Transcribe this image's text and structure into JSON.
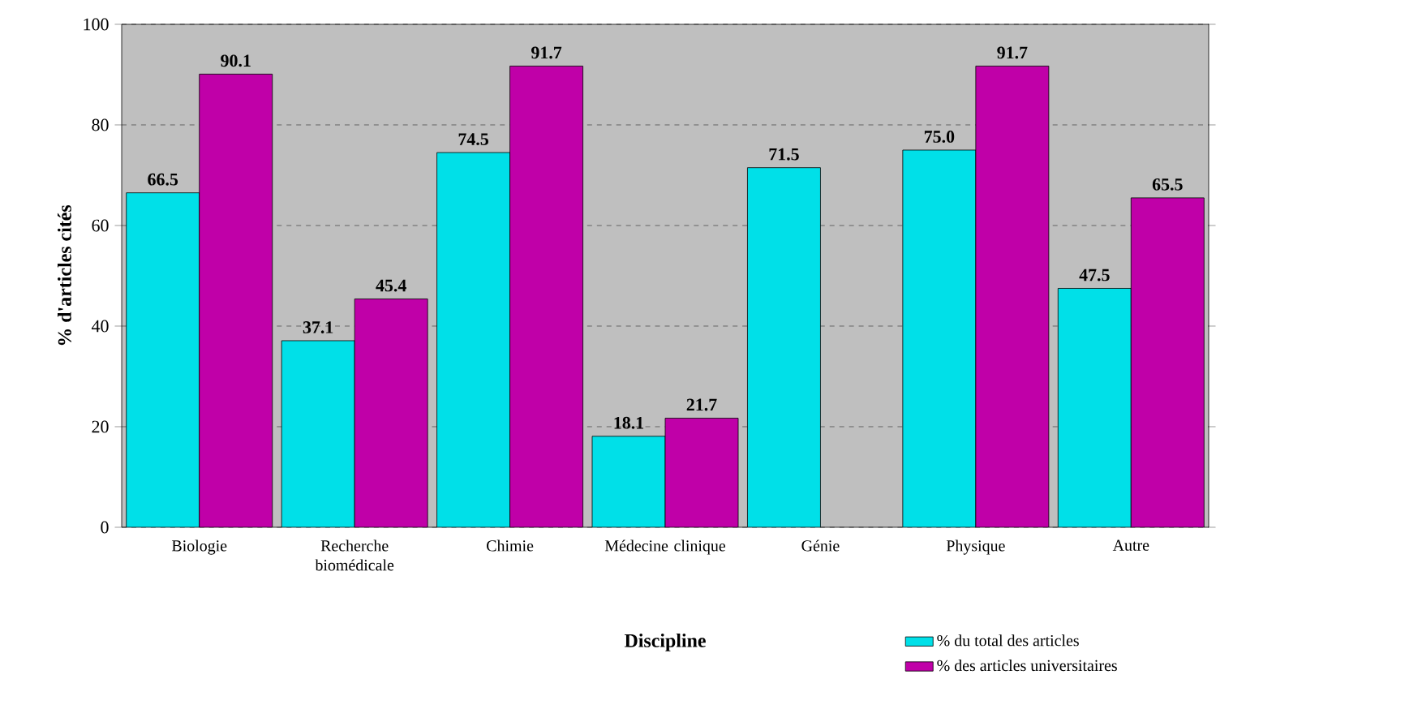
{
  "chart_data": {
    "type": "bar",
    "xlabel": "Discipline",
    "ylabel": "% d'articles cités",
    "categories": [
      "Biologie",
      "Recherche biomédicale",
      "Chimie",
      "Médecine clinique",
      "Génie",
      "Physique",
      "Autre"
    ],
    "series": [
      {
        "name": "%  du total des articles",
        "color": "#00e0e8",
        "values": [
          66.5,
          37.1,
          74.5,
          18.1,
          71.5,
          75.0,
          47.5
        ],
        "value_labels": [
          "66.5",
          "37.1",
          "74.5",
          "18.1",
          "71.5",
          "75.0",
          "47.5"
        ]
      },
      {
        "name": "% des articles universitaires",
        "color": "#c000a8",
        "values": [
          90.1,
          45.4,
          91.7,
          21.7,
          null,
          91.7,
          65.5
        ],
        "value_labels": [
          "90.1",
          "45.4",
          "91.7",
          "21.7",
          null,
          "91.7",
          "65.5"
        ]
      }
    ],
    "ylim": [
      0,
      100
    ],
    "yticks": [
      0,
      20,
      40,
      60,
      80,
      100
    ],
    "grid": "y",
    "legend": "bottom right"
  }
}
